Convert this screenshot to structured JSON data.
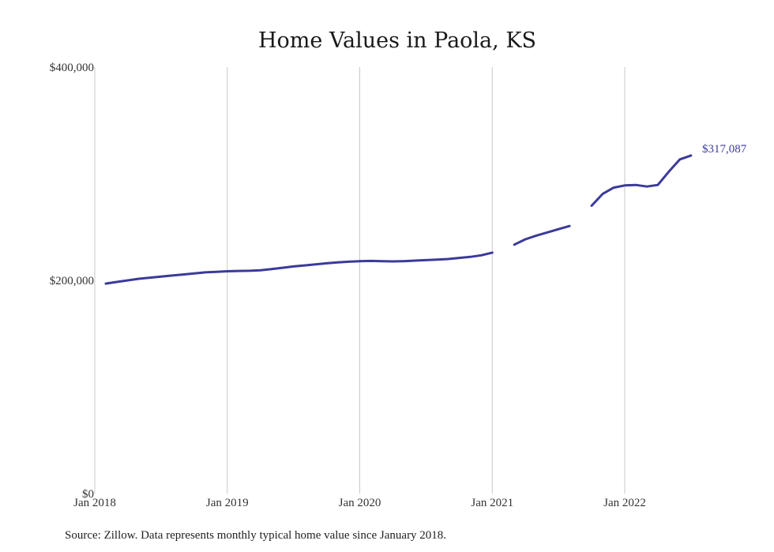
{
  "chart_data": {
    "type": "line",
    "title": "Home Values in Paola, KS",
    "source": "Source: Zillow. Data represents monthly typical home value since January 2018.",
    "y_ticks": [
      {
        "value": 0,
        "label": "$0"
      },
      {
        "value": 200000,
        "label": "$200,000"
      },
      {
        "value": 400000,
        "label": "$400,000"
      }
    ],
    "x_ticks": [
      {
        "value": "2018-01",
        "label": "Jan 2018"
      },
      {
        "value": "2019-01",
        "label": "Jan 2019"
      },
      {
        "value": "2020-01",
        "label": "Jan 2020"
      },
      {
        "value": "2021-01",
        "label": "Jan 2021"
      },
      {
        "value": "2022-01",
        "label": "Jan 2022"
      }
    ],
    "ylim": [
      0,
      400000
    ],
    "xlim": [
      "2018-01",
      "2022-08"
    ],
    "grid": "vertical",
    "color": "#3b3a9a",
    "series": [
      {
        "segments": [
          [
            {
              "x": "2018-02",
              "y": 197000
            },
            {
              "x": "2018-03",
              "y": 198500
            },
            {
              "x": "2018-04",
              "y": 200000
            },
            {
              "x": "2018-05",
              "y": 201500
            },
            {
              "x": "2018-06",
              "y": 202500
            },
            {
              "x": "2018-07",
              "y": 203500
            },
            {
              "x": "2018-08",
              "y": 204500
            },
            {
              "x": "2018-09",
              "y": 205500
            },
            {
              "x": "2018-10",
              "y": 206500
            },
            {
              "x": "2018-11",
              "y": 207500
            },
            {
              "x": "2018-12",
              "y": 208000
            },
            {
              "x": "2019-01",
              "y": 208500
            },
            {
              "x": "2019-02",
              "y": 208800
            },
            {
              "x": "2019-03",
              "y": 209000
            },
            {
              "x": "2019-04",
              "y": 209500
            },
            {
              "x": "2019-05",
              "y": 210500
            },
            {
              "x": "2019-06",
              "y": 211800
            },
            {
              "x": "2019-07",
              "y": 213000
            },
            {
              "x": "2019-08",
              "y": 214000
            },
            {
              "x": "2019-09",
              "y": 215000
            },
            {
              "x": "2019-10",
              "y": 216000
            },
            {
              "x": "2019-11",
              "y": 216800
            },
            {
              "x": "2019-12",
              "y": 217500
            },
            {
              "x": "2020-01",
              "y": 218000
            },
            {
              "x": "2020-02",
              "y": 218200
            },
            {
              "x": "2020-03",
              "y": 218000
            },
            {
              "x": "2020-04",
              "y": 217800
            },
            {
              "x": "2020-05",
              "y": 218000
            },
            {
              "x": "2020-06",
              "y": 218500
            },
            {
              "x": "2020-07",
              "y": 219000
            },
            {
              "x": "2020-08",
              "y": 219500
            },
            {
              "x": "2020-09",
              "y": 220000
            },
            {
              "x": "2020-10",
              "y": 221000
            },
            {
              "x": "2020-11",
              "y": 222000
            },
            {
              "x": "2020-12",
              "y": 223500
            },
            {
              "x": "2021-01",
              "y": 226000
            }
          ],
          [
            {
              "x": "2021-03",
              "y": 233500
            },
            {
              "x": "2021-04",
              "y": 238500
            },
            {
              "x": "2021-05",
              "y": 242000
            },
            {
              "x": "2021-06",
              "y": 245000
            },
            {
              "x": "2021-07",
              "y": 248000
            },
            {
              "x": "2021-08",
              "y": 251000
            }
          ],
          [
            {
              "x": "2021-10",
              "y": 270000
            },
            {
              "x": "2021-11",
              "y": 281000
            },
            {
              "x": "2021-12",
              "y": 287000
            },
            {
              "x": "2022-01",
              "y": 289000
            },
            {
              "x": "2022-02",
              "y": 289500
            },
            {
              "x": "2022-03",
              "y": 288000
            },
            {
              "x": "2022-04",
              "y": 289500
            },
            {
              "x": "2022-05",
              "y": 302000
            },
            {
              "x": "2022-06",
              "y": 313500
            },
            {
              "x": "2022-07",
              "y": 317087
            }
          ]
        ]
      }
    ],
    "end_label": "$317,087"
  }
}
